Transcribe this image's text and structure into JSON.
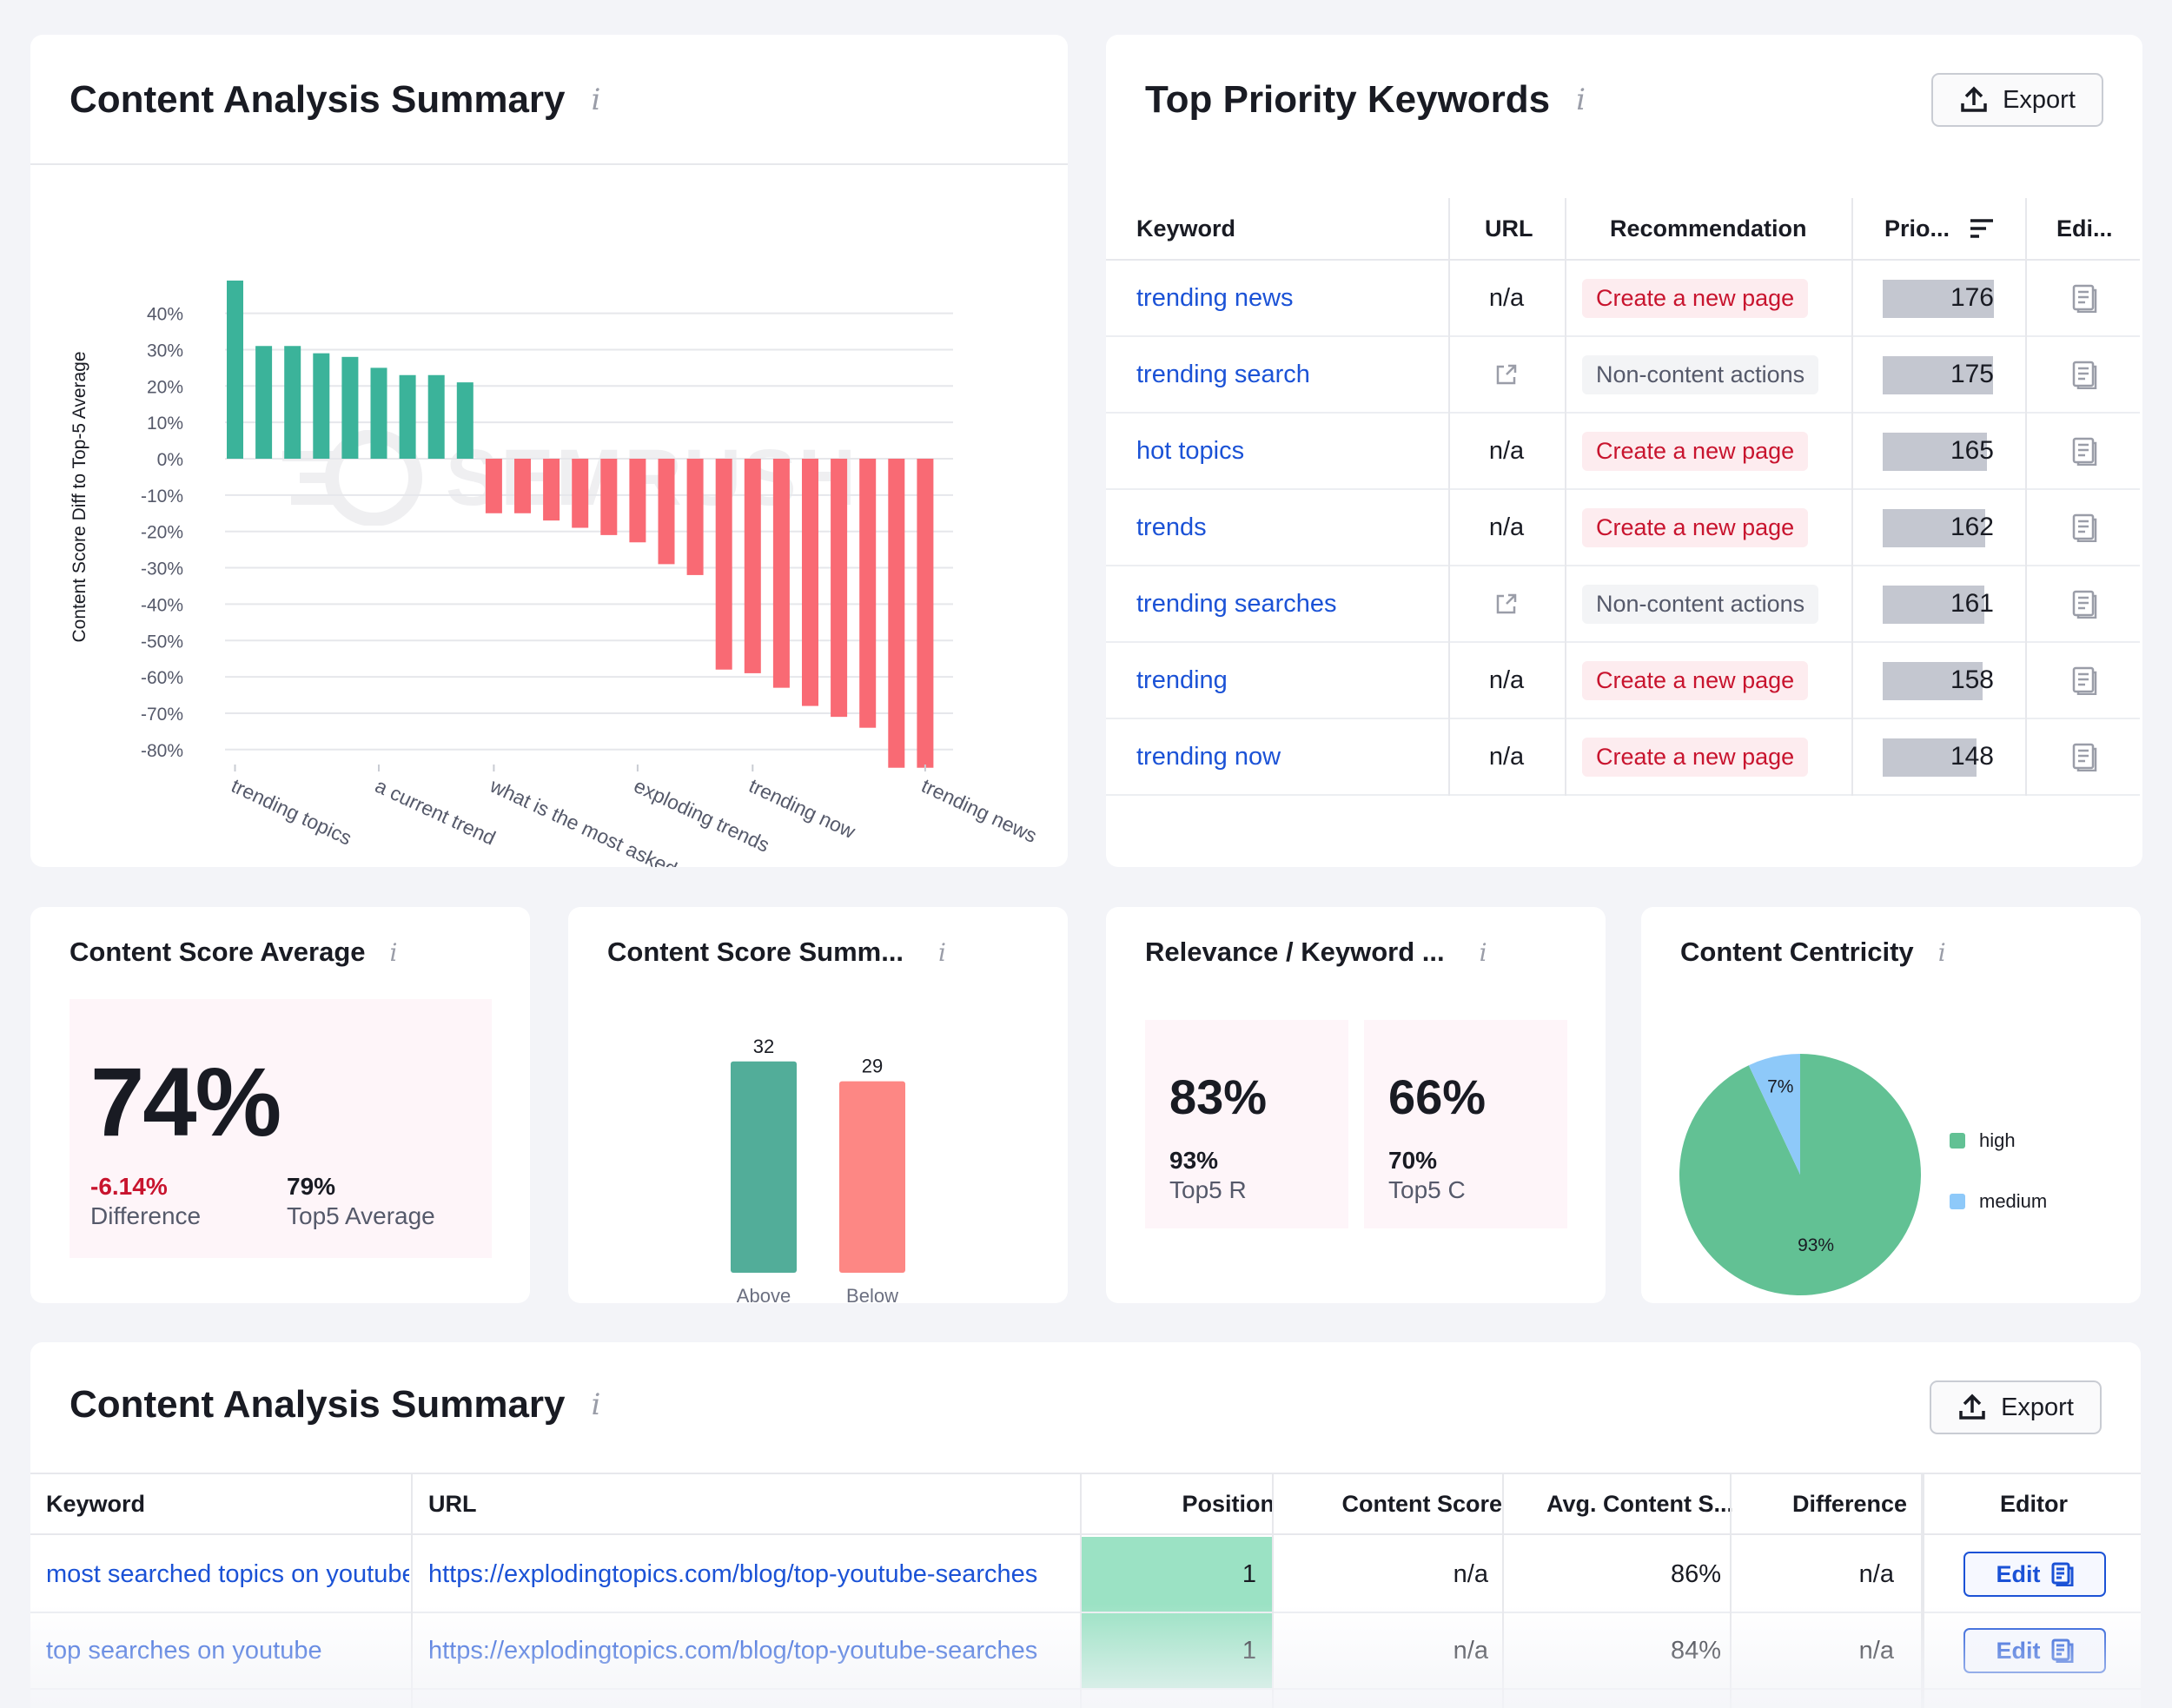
{
  "analysis_card": {
    "title": "Content Analysis Summary",
    "info": "i",
    "watermark": "SEMRUSH"
  },
  "chart_data": [
    {
      "type": "bar",
      "ylabel": "Content Score Diff to Top-5 Average",
      "ylim": [
        -85,
        45
      ],
      "yticks": [
        40,
        30,
        20,
        10,
        0,
        -10,
        -20,
        -30,
        -40,
        -50,
        -60,
        -70,
        -80
      ],
      "ytick_labels": [
        "40%",
        "30%",
        "20%",
        "10%",
        "0%",
        "-10%",
        "-20%",
        "-30%",
        "-40%",
        "-50%",
        "-60%",
        "-70%",
        "-80%"
      ],
      "xtick_labels": [
        "trending topics",
        "a current trend",
        "what is the most asked",
        "exploding trends",
        "trending now",
        "trending news"
      ],
      "xtick_positions": [
        0,
        5,
        9,
        14,
        18,
        24
      ],
      "values": [
        49,
        31,
        31,
        29,
        28,
        25,
        23,
        23,
        21,
        -15,
        -15,
        -17,
        -19,
        -21,
        -23,
        -29,
        -32,
        -58,
        -59,
        -63,
        -68,
        -71,
        -74,
        -85,
        -85
      ],
      "colors": {
        "positive": "#3bb39a",
        "negative": "#f96a74"
      }
    },
    {
      "type": "bar",
      "categories": [
        "Above",
        "Below"
      ],
      "values": [
        32,
        29
      ],
      "colors": [
        "#52ad99",
        "#fd8784"
      ]
    },
    {
      "type": "pie",
      "labels": [
        "high",
        "medium"
      ],
      "values": [
        93,
        7
      ],
      "value_labels": [
        "93%",
        "7%"
      ],
      "colors": [
        "#62c194",
        "#8ec9f9"
      ],
      "legend_position": "right"
    }
  ],
  "keywords_card": {
    "title": "Top Priority Keywords",
    "info": "i",
    "export_label": "Export",
    "headers": [
      "Keyword",
      "URL",
      "Recommendation",
      "Prio...",
      "Edi..."
    ],
    "rows": [
      {
        "keyword": "trending news",
        "url": "n/a",
        "rec": "Create a new page",
        "rec_type": "create",
        "prio": 176
      },
      {
        "keyword": "trending search",
        "url": "",
        "rec": "Non-content actions",
        "rec_type": "non",
        "prio": 175
      },
      {
        "keyword": "hot topics",
        "url": "n/a",
        "rec": "Create a new page",
        "rec_type": "create",
        "prio": 165
      },
      {
        "keyword": "trends",
        "url": "n/a",
        "rec": "Create a new page",
        "rec_type": "create",
        "prio": 162
      },
      {
        "keyword": "trending searches",
        "url": "",
        "rec": "Non-content actions",
        "rec_type": "non",
        "prio": 161
      },
      {
        "keyword": "trending",
        "url": "n/a",
        "rec": "Create a new page",
        "rec_type": "create",
        "prio": 158
      },
      {
        "keyword": "trending now",
        "url": "n/a",
        "rec": "Create a new page",
        "rec_type": "create",
        "prio": 148
      }
    ]
  },
  "score_avg": {
    "title": "Content Score Average",
    "info": "i",
    "value": "74%",
    "diff_value": "-6.14%",
    "diff_label": "Difference",
    "top5_value": "79%",
    "top5_label": "Top5 Average",
    "diff_color": "#c8142e"
  },
  "score_summary": {
    "title": "Content Score Summ...",
    "info": "i",
    "above_value": "32",
    "below_value": "29",
    "above_label": "Above",
    "below_label": "Below"
  },
  "relevance": {
    "title": "Relevance / Keyword ...",
    "info": "i",
    "left_value": "83%",
    "left_sub_value": "93%",
    "left_sub_label": "Top5 R",
    "right_value": "66%",
    "right_sub_value": "70%",
    "right_sub_label": "Top5 C"
  },
  "centricity": {
    "title": "Content Centricity",
    "info": "i",
    "legend": [
      "high",
      "medium"
    ],
    "slice_labels": [
      "93%",
      "7%"
    ]
  },
  "bottom_table": {
    "title": "Content Analysis Summary",
    "info": "i",
    "export_label": "Export",
    "headers": [
      "Keyword",
      "URL",
      "Position",
      "Content Score",
      "Avg. Content S...",
      "Difference",
      "Editor"
    ],
    "rows": [
      {
        "keyword": "most searched topics on youtube",
        "url": "https://explodingtopics.com/blog/top-youtube-searches",
        "position": "1",
        "score": "n/a",
        "avg": "86%",
        "diff": "n/a",
        "edit": "Edit"
      },
      {
        "keyword": "top searches on youtube",
        "url": "https://explodingtopics.com/blog/top-youtube-searches",
        "position": "1",
        "score": "n/a",
        "avg": "84%",
        "diff": "n/a",
        "edit": "Edit"
      }
    ]
  }
}
